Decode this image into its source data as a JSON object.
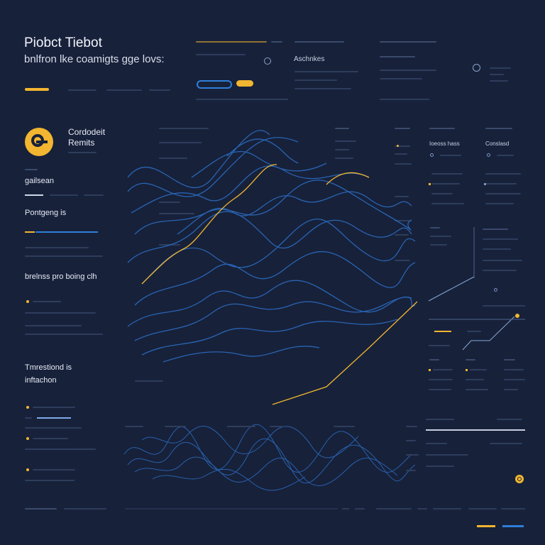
{
  "header": {
    "title": "Piobct Tiebot",
    "subtitle": "bnlfron lke coamigts gge lovs:",
    "col_label": "Aschnkes"
  },
  "sidebar": {
    "logo_title_line1": "Cordodeit",
    "logo_title_line2": "Remits",
    "item_label_1": "gailsean",
    "item_label_2": "Pontgeng is",
    "item_label_3": "brelnss pro boing clh",
    "section_title_line1": "Tmrestiond is",
    "section_title_line2": "inftachon"
  },
  "right_panel": {
    "label_1": "Ioeoss hass",
    "label_2": "Conslasd"
  },
  "colors": {
    "background": "#17213a",
    "accent_yellow": "#f2b630",
    "accent_blue": "#2f7fd8",
    "line_blue": "#2b6cc0"
  },
  "icons": {
    "logo": "circle-logo-icon",
    "search_toggle": "circle-toggle-icon",
    "badge": "yellow-circle-badge-icon"
  }
}
